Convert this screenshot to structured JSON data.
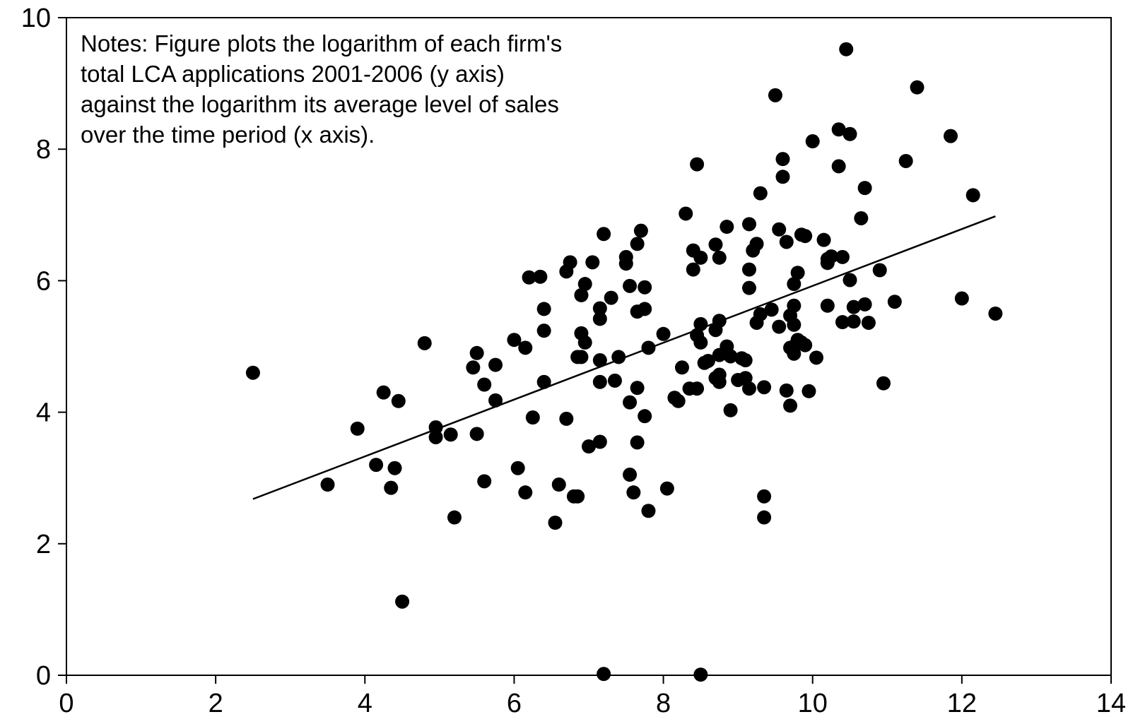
{
  "chart_data": {
    "type": "scatter",
    "title": "",
    "xlabel": "",
    "ylabel": "",
    "xlim": [
      0,
      14
    ],
    "ylim": [
      0,
      10
    ],
    "x_ticks": [
      "0",
      "2",
      "4",
      "6",
      "8",
      "10",
      "12",
      "14"
    ],
    "y_ticks": [
      "0",
      "2",
      "4",
      "6",
      "8",
      "10"
    ],
    "grid": false,
    "fit_line": {
      "x": [
        2.5,
        12.45
      ],
      "y": [
        2.68,
        6.98
      ]
    },
    "points": [
      [
        2.5,
        4.6
      ],
      [
        3.5,
        2.9
      ],
      [
        3.9,
        3.75
      ],
      [
        4.15,
        3.2
      ],
      [
        4.25,
        4.3
      ],
      [
        4.35,
        2.85
      ],
      [
        4.4,
        3.15
      ],
      [
        4.45,
        4.17
      ],
      [
        4.5,
        1.12
      ],
      [
        4.8,
        5.05
      ],
      [
        4.95,
        3.62
      ],
      [
        4.95,
        3.77
      ],
      [
        5.15,
        3.66
      ],
      [
        5.2,
        2.4
      ],
      [
        5.45,
        4.68
      ],
      [
        5.5,
        4.9
      ],
      [
        5.5,
        3.67
      ],
      [
        5.6,
        4.42
      ],
      [
        5.6,
        2.95
      ],
      [
        5.75,
        4.18
      ],
      [
        5.75,
        4.72
      ],
      [
        6.0,
        5.1
      ],
      [
        6.05,
        3.15
      ],
      [
        6.15,
        4.98
      ],
      [
        6.15,
        2.78
      ],
      [
        6.2,
        6.05
      ],
      [
        6.25,
        3.92
      ],
      [
        6.35,
        6.06
      ],
      [
        6.4,
        5.57
      ],
      [
        6.4,
        5.24
      ],
      [
        6.4,
        4.46
      ],
      [
        6.55,
        2.32
      ],
      [
        6.6,
        2.9
      ],
      [
        6.7,
        6.14
      ],
      [
        6.7,
        3.9
      ],
      [
        6.75,
        6.28
      ],
      [
        6.8,
        2.72
      ],
      [
        6.85,
        2.72
      ],
      [
        6.85,
        4.84
      ],
      [
        6.9,
        5.78
      ],
      [
        6.9,
        5.2
      ],
      [
        6.9,
        4.84
      ],
      [
        6.95,
        5.95
      ],
      [
        6.95,
        5.06
      ],
      [
        7.0,
        3.48
      ],
      [
        7.05,
        6.28
      ],
      [
        7.15,
        5.58
      ],
      [
        7.15,
        5.42
      ],
      [
        7.15,
        4.79
      ],
      [
        7.15,
        4.46
      ],
      [
        7.15,
        3.55
      ],
      [
        7.2,
        6.71
      ],
      [
        7.2,
        0.02
      ],
      [
        7.3,
        5.74
      ],
      [
        7.35,
        4.48
      ],
      [
        7.4,
        4.84
      ],
      [
        7.5,
        6.36
      ],
      [
        7.5,
        6.26
      ],
      [
        7.55,
        5.92
      ],
      [
        7.55,
        4.15
      ],
      [
        7.55,
        3.05
      ],
      [
        7.6,
        2.78
      ],
      [
        7.65,
        6.56
      ],
      [
        7.65,
        5.53
      ],
      [
        7.65,
        4.37
      ],
      [
        7.65,
        3.54
      ],
      [
        7.7,
        6.76
      ],
      [
        7.75,
        5.57
      ],
      [
        7.75,
        5.9
      ],
      [
        7.75,
        3.94
      ],
      [
        7.8,
        4.98
      ],
      [
        7.8,
        2.5
      ],
      [
        8.0,
        5.19
      ],
      [
        8.05,
        2.84
      ],
      [
        8.15,
        4.22
      ],
      [
        8.2,
        4.17
      ],
      [
        8.25,
        4.68
      ],
      [
        8.3,
        7.02
      ],
      [
        8.35,
        4.36
      ],
      [
        8.4,
        6.17
      ],
      [
        8.4,
        6.46
      ],
      [
        8.45,
        5.17
      ],
      [
        8.45,
        4.36
      ],
      [
        8.45,
        7.77
      ],
      [
        8.5,
        6.35
      ],
      [
        8.5,
        5.34
      ],
      [
        8.5,
        5.06
      ],
      [
        8.5,
        0.01
      ],
      [
        8.55,
        4.75
      ],
      [
        8.6,
        4.78
      ],
      [
        8.7,
        6.55
      ],
      [
        8.7,
        5.25
      ],
      [
        8.7,
        4.52
      ],
      [
        8.75,
        4.46
      ],
      [
        8.75,
        6.35
      ],
      [
        8.75,
        4.87
      ],
      [
        8.75,
        5.39
      ],
      [
        8.75,
        4.57
      ],
      [
        8.85,
        6.82
      ],
      [
        8.85,
        5.0
      ],
      [
        8.85,
        4.9
      ],
      [
        8.9,
        4.85
      ],
      [
        8.9,
        4.03
      ],
      [
        9.0,
        4.49
      ],
      [
        9.05,
        4.82
      ],
      [
        9.1,
        4.79
      ],
      [
        9.1,
        4.52
      ],
      [
        9.15,
        6.86
      ],
      [
        9.15,
        6.17
      ],
      [
        9.15,
        5.89
      ],
      [
        9.15,
        4.36
      ],
      [
        9.2,
        6.46
      ],
      [
        9.25,
        6.56
      ],
      [
        9.25,
        5.36
      ],
      [
        9.3,
        5.49
      ],
      [
        9.3,
        7.33
      ],
      [
        9.35,
        2.72
      ],
      [
        9.35,
        2.4
      ],
      [
        9.35,
        4.38
      ],
      [
        9.45,
        5.56
      ],
      [
        9.5,
        8.82
      ],
      [
        9.55,
        6.78
      ],
      [
        9.55,
        5.3
      ],
      [
        9.6,
        7.85
      ],
      [
        9.6,
        7.58
      ],
      [
        9.65,
        6.59
      ],
      [
        9.65,
        4.33
      ],
      [
        9.7,
        5.47
      ],
      [
        9.7,
        4.98
      ],
      [
        9.7,
        4.1
      ],
      [
        9.75,
        5.95
      ],
      [
        9.75,
        5.62
      ],
      [
        9.75,
        5.33
      ],
      [
        9.75,
        5.0
      ],
      [
        9.75,
        4.89
      ],
      [
        9.8,
        6.12
      ],
      [
        9.8,
        5.1
      ],
      [
        9.85,
        5.06
      ],
      [
        9.85,
        6.7
      ],
      [
        9.9,
        5.02
      ],
      [
        9.9,
        6.68
      ],
      [
        9.95,
        4.32
      ],
      [
        10.0,
        8.12
      ],
      [
        10.05,
        4.83
      ],
      [
        10.15,
        6.62
      ],
      [
        10.2,
        6.33
      ],
      [
        10.2,
        6.27
      ],
      [
        10.2,
        5.62
      ],
      [
        10.25,
        6.37
      ],
      [
        10.35,
        7.74
      ],
      [
        10.35,
        8.3
      ],
      [
        10.4,
        6.36
      ],
      [
        10.4,
        5.37
      ],
      [
        10.45,
        9.52
      ],
      [
        10.5,
        8.23
      ],
      [
        10.5,
        6.01
      ],
      [
        10.55,
        5.6
      ],
      [
        10.55,
        5.38
      ],
      [
        10.65,
        6.95
      ],
      [
        10.7,
        7.41
      ],
      [
        10.7,
        5.64
      ],
      [
        10.75,
        5.36
      ],
      [
        10.9,
        6.16
      ],
      [
        10.95,
        4.44
      ],
      [
        11.1,
        5.68
      ],
      [
        11.25,
        7.82
      ],
      [
        11.4,
        8.94
      ],
      [
        11.85,
        8.2
      ],
      [
        12.0,
        5.73
      ],
      [
        12.15,
        7.3
      ],
      [
        12.45,
        5.5
      ]
    ],
    "annotation": [
      "Notes: Figure plots the logarithm of each firm's",
      "total LCA applications 2001-2006 (y axis)",
      "against the logarithm its average level of sales",
      "over the time period (x axis)."
    ]
  }
}
